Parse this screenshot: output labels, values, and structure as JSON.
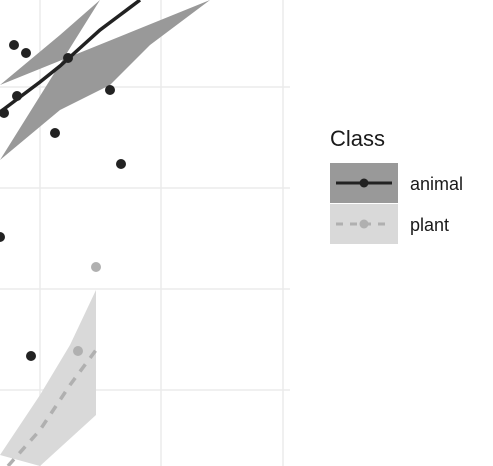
{
  "chart_data": {
    "type": "scatter",
    "title": "",
    "xlabel": "",
    "ylabel": "",
    "xlim": [
      0,
      290
    ],
    "ylim": [
      0,
      466
    ],
    "grid": true,
    "legend_position": "right",
    "legend": {
      "title": "Class",
      "entries": [
        "animal",
        "plant"
      ]
    },
    "series": [
      {
        "name": "animal",
        "color": "#222222",
        "line_style": "solid",
        "ribbon_color": "#999999",
        "points": [
          [
            14,
            45
          ],
          [
            26,
            53
          ],
          [
            68,
            58
          ],
          [
            17,
            96
          ],
          [
            4,
            113
          ],
          [
            110,
            90
          ],
          [
            55,
            133
          ],
          [
            121,
            164
          ],
          [
            0,
            237
          ],
          [
            31,
            356
          ]
        ],
        "fit_line": [
          [
            0,
            112
          ],
          [
            20,
            97
          ],
          [
            40,
            82
          ],
          [
            60,
            66
          ],
          [
            80,
            48
          ],
          [
            100,
            30
          ],
          [
            120,
            15
          ],
          [
            140,
            0
          ]
        ],
        "ribbon_upper": [
          [
            0,
            85
          ],
          [
            60,
            35
          ],
          [
            100,
            0
          ]
        ],
        "ribbon_lower": [
          [
            0,
            160
          ],
          [
            60,
            110
          ],
          [
            110,
            85
          ],
          [
            150,
            45
          ],
          [
            210,
            0
          ]
        ]
      },
      {
        "name": "plant",
        "color": "#b0b0b0",
        "line_style": "dashed",
        "ribbon_color": "#d9d9d9",
        "points": [
          [
            96,
            267
          ],
          [
            78,
            351
          ]
        ],
        "fit_line": [
          [
            8,
            466
          ],
          [
            40,
            430
          ],
          [
            70,
            385
          ],
          [
            96,
            350
          ]
        ],
        "ribbon_upper": [
          [
            0,
            455
          ],
          [
            40,
            395
          ],
          [
            70,
            345
          ],
          [
            96,
            290
          ]
        ],
        "ribbon_lower": [
          [
            96,
            415
          ],
          [
            40,
            466
          ]
        ]
      }
    ]
  }
}
